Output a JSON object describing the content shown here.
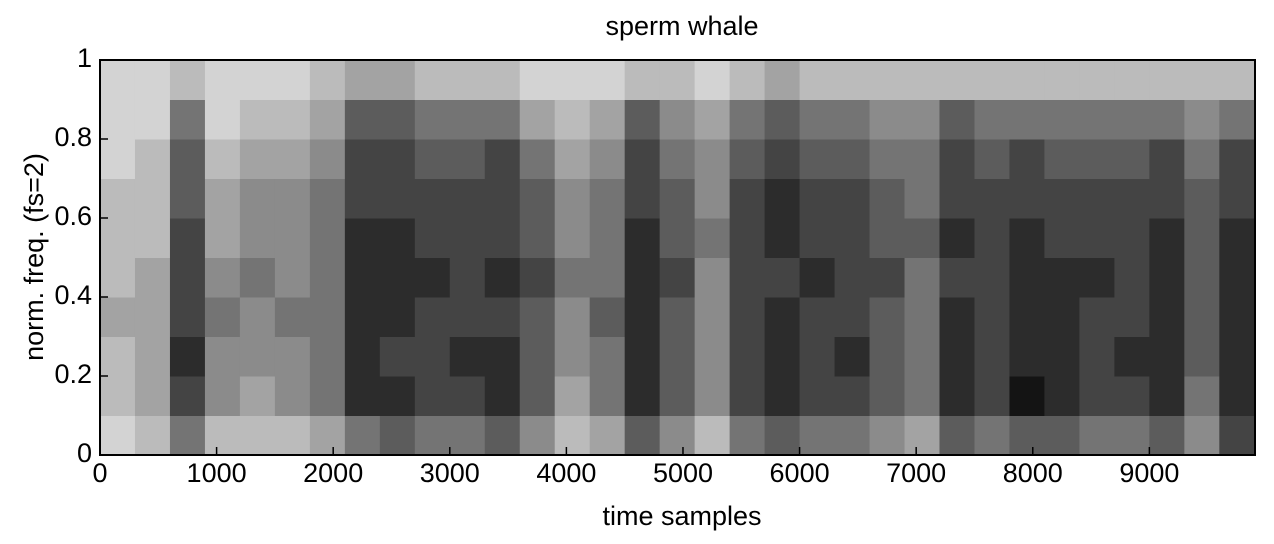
{
  "chart_data": {
    "type": "heatmap",
    "title": "sperm whale",
    "xlabel": "time samples",
    "ylabel": "norm. freq. (fs=2)",
    "xlim": [
      0,
      9906
    ],
    "ylim": [
      0,
      1
    ],
    "xticks": [
      0,
      1000,
      2000,
      3000,
      4000,
      5000,
      6000,
      7000,
      8000,
      9000
    ],
    "yticks": [
      0,
      0.2,
      0.4,
      0.6,
      0.8,
      1
    ],
    "xbins": [
      0,
      300,
      600,
      900,
      1200,
      1500,
      1800,
      2100,
      2400,
      2700,
      3000,
      3300,
      3600,
      3900,
      4200,
      4500,
      4800,
      5100,
      5400,
      5700,
      6000,
      6300,
      6600,
      6900,
      7200,
      7500,
      7800,
      8100,
      8400,
      8700,
      9000,
      9300,
      9600,
      9906
    ],
    "ybins": [
      0,
      0.1,
      0.2,
      0.3,
      0.4,
      0.5,
      0.6,
      0.7,
      0.8,
      0.9,
      1
    ],
    "z": [
      [
        1,
        2,
        5,
        2,
        2,
        2,
        3,
        5,
        6,
        5,
        5,
        6,
        4,
        2,
        3,
        6,
        4,
        2,
        5,
        6,
        5,
        5,
        4,
        3,
        6,
        5,
        6,
        6,
        5,
        5,
        6,
        4,
        7
      ],
      [
        2,
        3,
        7,
        4,
        3,
        4,
        5,
        8,
        8,
        7,
        7,
        8,
        6,
        3,
        5,
        8,
        6,
        4,
        7,
        8,
        7,
        7,
        6,
        5,
        8,
        7,
        9,
        8,
        7,
        7,
        8,
        5,
        8
      ],
      [
        2,
        3,
        8,
        4,
        4,
        4,
        5,
        8,
        7,
        7,
        8,
        8,
        6,
        4,
        5,
        8,
        6,
        4,
        7,
        8,
        7,
        8,
        6,
        5,
        8,
        7,
        8,
        8,
        7,
        8,
        8,
        6,
        8
      ],
      [
        3,
        3,
        7,
        5,
        4,
        5,
        5,
        8,
        8,
        7,
        7,
        7,
        6,
        4,
        6,
        8,
        6,
        4,
        7,
        8,
        7,
        7,
        6,
        5,
        8,
        7,
        8,
        8,
        7,
        7,
        8,
        6,
        8
      ],
      [
        2,
        3,
        7,
        4,
        5,
        4,
        5,
        8,
        8,
        8,
        7,
        8,
        7,
        5,
        5,
        8,
        7,
        4,
        7,
        7,
        8,
        7,
        7,
        5,
        7,
        7,
        8,
        8,
        8,
        7,
        8,
        6,
        8
      ],
      [
        2,
        2,
        7,
        3,
        4,
        4,
        5,
        8,
        8,
        7,
        7,
        7,
        6,
        4,
        5,
        8,
        6,
        5,
        7,
        8,
        7,
        7,
        6,
        6,
        8,
        7,
        8,
        7,
        7,
        7,
        8,
        6,
        8
      ],
      [
        2,
        2,
        6,
        3,
        4,
        4,
        5,
        7,
        7,
        7,
        7,
        7,
        6,
        4,
        5,
        7,
        6,
        4,
        7,
        8,
        7,
        7,
        6,
        5,
        7,
        7,
        7,
        7,
        7,
        7,
        7,
        6,
        7
      ],
      [
        1,
        2,
        6,
        2,
        3,
        3,
        4,
        7,
        7,
        6,
        6,
        7,
        5,
        3,
        4,
        7,
        5,
        4,
        6,
        7,
        6,
        6,
        5,
        5,
        7,
        6,
        7,
        6,
        6,
        6,
        7,
        5,
        7
      ],
      [
        1,
        1,
        5,
        1,
        2,
        2,
        3,
        6,
        6,
        5,
        5,
        5,
        3,
        2,
        3,
        6,
        4,
        3,
        5,
        6,
        5,
        5,
        4,
        4,
        6,
        5,
        5,
        5,
        5,
        5,
        5,
        4,
        5
      ],
      [
        1,
        1,
        2,
        1,
        1,
        1,
        2,
        3,
        3,
        2,
        2,
        2,
        1,
        1,
        1,
        2,
        2,
        1,
        2,
        3,
        2,
        2,
        2,
        2,
        2,
        2,
        2,
        2,
        2,
        2,
        2,
        2,
        2
      ]
    ]
  }
}
